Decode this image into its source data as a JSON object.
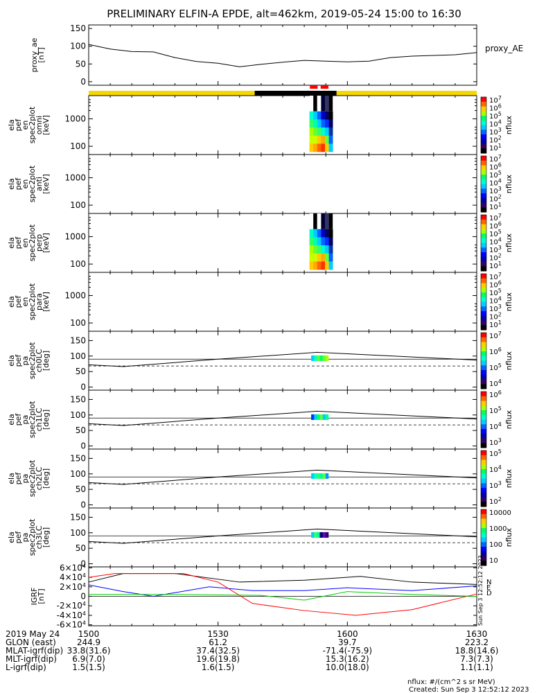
{
  "title": "PRELIMINARY ELFIN-A EPDE, alt=462km, 2019-05-24 15:00 to 16:30",
  "footer": {
    "units": "nflux: #/(cm^2 s sr MeV)",
    "created": "Created: Sun Sep  3 12:52:12 2023",
    "vertical_stamp": "Sun Sep  3 12:52:12 2023"
  },
  "orbit_table": {
    "row_labels": [
      "2019 May 24",
      "GLON (east)",
      "MLAT-igrf(dip)",
      "MLT-igrf(dip)",
      "L-igrf(dip)"
    ],
    "columns": [
      {
        "time": "1500",
        "values": [
          "244.9",
          "33.8(31.6)",
          "6.9(7.0)",
          "1.5(1.5)"
        ]
      },
      {
        "time": "1530",
        "values": [
          "61.2",
          "37.4(32.5)",
          "19.6(19.8)",
          "1.6(1.5)"
        ]
      },
      {
        "time": "1600",
        "values": [
          "39.7",
          "-71.4(-75.9)",
          "15.3(16.2)",
          "10.0(18.0)"
        ]
      },
      {
        "time": "1630",
        "values": [
          "223.2",
          "18.8(14.6)",
          "7.3(7.3)",
          "1.1(1.1)"
        ]
      }
    ]
  },
  "chart_data": [
    {
      "type": "line",
      "panel": "proxy_ae",
      "ylabel": [
        "proxy_ae",
        "[nT]"
      ],
      "legend": "proxy_AE",
      "yticks": [
        "0",
        "50",
        "100",
        "150"
      ],
      "ylim": [
        -10,
        160
      ],
      "x_minutes": [
        0,
        5,
        10,
        15,
        20,
        25,
        30,
        35,
        40,
        45,
        50,
        55,
        60,
        65,
        70,
        75,
        80,
        85,
        90
      ],
      "y": [
        105,
        92,
        85,
        84,
        68,
        57,
        52,
        42,
        49,
        55,
        60,
        58,
        56,
        58,
        68,
        72,
        74,
        76,
        82
      ]
    },
    {
      "type": "bar",
      "panel": "status_bar",
      "segments": [
        {
          "from_min": 0,
          "to_min": 38.5,
          "color": "#f5d800"
        },
        {
          "from_min": 38.5,
          "to_min": 57.5,
          "color": "#000000"
        },
        {
          "from_min": 57.5,
          "to_min": 90,
          "color": "#f5d800"
        }
      ],
      "markers": [
        {
          "from_min": 51.3,
          "to_min": 53.1,
          "color": "#ff0000"
        },
        {
          "from_min": 53.8,
          "to_min": 55.6,
          "color": "#ff0000"
        }
      ]
    },
    {
      "type": "heatmap",
      "panel": "omni",
      "ylabel": [
        "ela",
        "pef",
        "en",
        "spec2plot",
        "omni",
        "[keV]"
      ],
      "yticks": [
        "100",
        "1000"
      ],
      "ylog": true,
      "colorbar": {
        "label": "nflux",
        "ticks": [
          "10^7",
          "10^6",
          "10^5",
          "10^4",
          "10^3",
          "10^2",
          "10^1"
        ]
      },
      "data_x_min": [
        51.2,
        56.6
      ],
      "has_data": true
    },
    {
      "type": "heatmap",
      "panel": "anti",
      "ylabel": [
        "ela",
        "pef",
        "en",
        "spec2plot",
        "anti",
        "[keV]"
      ],
      "yticks": [
        "100",
        "1000"
      ],
      "ylog": true,
      "colorbar": {
        "label": "nflux",
        "ticks": [
          "10^7",
          "10^6",
          "10^5",
          "10^4",
          "10^3",
          "10^2",
          "10^1"
        ]
      },
      "has_data": false
    },
    {
      "type": "heatmap",
      "panel": "perp",
      "ylabel": [
        "ela",
        "pef",
        "en",
        "spec2plot",
        "perp",
        "[keV]"
      ],
      "yticks": [
        "100",
        "1000"
      ],
      "ylog": true,
      "colorbar": {
        "label": "nflux",
        "ticks": [
          "10^7",
          "10^6",
          "10^5",
          "10^4",
          "10^3",
          "10^2",
          "10^1"
        ]
      },
      "data_x_min": [
        51.2,
        56.6
      ],
      "has_data": true
    },
    {
      "type": "heatmap",
      "panel": "para",
      "ylabel": [
        "ela",
        "pef",
        "en",
        "spec2plot",
        "para",
        "[keV]"
      ],
      "yticks": [
        "100",
        "1000"
      ],
      "ylog": true,
      "colorbar": {
        "label": "nflux",
        "ticks": [
          "10^7",
          "10^6",
          "10^5",
          "10^4",
          "10^3",
          "10^2",
          "10^1"
        ]
      },
      "has_data": false
    },
    {
      "type": "heatmap",
      "panel": "ch0LC",
      "ylabel": [
        "ela",
        "pef",
        "pa",
        "spec2plot",
        "ch0LC",
        "[deg]"
      ],
      "yticks": [
        "0",
        "50",
        "100",
        "150"
      ],
      "colorbar": {
        "label": "nflux",
        "ticks": [
          "10^7",
          "10^6",
          "10^5",
          "10^4"
        ]
      },
      "solid_curve": [
        {
          "x": 0,
          "y": 72
        },
        {
          "x": 8,
          "y": 66
        },
        {
          "x": 30,
          "y": 90
        },
        {
          "x": 53,
          "y": 112
        },
        {
          "x": 90,
          "y": 87
        }
      ],
      "dashed_level": 68,
      "horizontal_ref": 90
    },
    {
      "type": "heatmap",
      "panel": "ch1LC",
      "ylabel": [
        "ela",
        "pef",
        "pa",
        "spec2plot",
        "ch1LC",
        "[deg]"
      ],
      "yticks": [
        "0",
        "50",
        "100",
        "150"
      ],
      "colorbar": {
        "label": "nflux",
        "ticks": [
          "10^6",
          "10^5",
          "10^4",
          "10^3"
        ]
      },
      "solid_curve": [
        {
          "x": 0,
          "y": 72
        },
        {
          "x": 8,
          "y": 66
        },
        {
          "x": 30,
          "y": 90
        },
        {
          "x": 53,
          "y": 112
        },
        {
          "x": 90,
          "y": 87
        }
      ],
      "dashed_level": 68,
      "horizontal_ref": 90
    },
    {
      "type": "heatmap",
      "panel": "ch2LC",
      "ylabel": [
        "ela",
        "pef",
        "pa",
        "spec2plot",
        "ch2LC",
        "[deg]"
      ],
      "yticks": [
        "0",
        "50",
        "100",
        "150"
      ],
      "colorbar": {
        "label": "nflux",
        "ticks": [
          "10^5",
          "10^4",
          "10^3",
          "10^2"
        ]
      },
      "solid_curve": [
        {
          "x": 0,
          "y": 72
        },
        {
          "x": 8,
          "y": 66
        },
        {
          "x": 30,
          "y": 90
        },
        {
          "x": 53,
          "y": 112
        },
        {
          "x": 90,
          "y": 87
        }
      ],
      "dashed_level": 68,
      "horizontal_ref": 90
    },
    {
      "type": "heatmap",
      "panel": "ch3LC",
      "ylabel": [
        "ela",
        "pef",
        "pa",
        "spec2plot",
        "ch3LC",
        "[deg]"
      ],
      "yticks": [
        "0",
        "50",
        "100",
        "150"
      ],
      "colorbar": {
        "label": "nflux",
        "ticks": [
          "10000",
          "1000",
          "100",
          "10"
        ]
      },
      "solid_curve": [
        {
          "x": 0,
          "y": 72
        },
        {
          "x": 8,
          "y": 66
        },
        {
          "x": 30,
          "y": 90
        },
        {
          "x": 53,
          "y": 112
        },
        {
          "x": 90,
          "y": 87
        }
      ],
      "dashed_level": 68,
      "horizontal_ref": 90
    },
    {
      "type": "line",
      "panel": "igrf",
      "ylabel": [
        "IGRF",
        "[nT]"
      ],
      "yticks": [
        "-6x10^4",
        "-4x10^4",
        "-2x10^4",
        "0",
        "2x10^4",
        "4x10^4",
        "6x10^4"
      ],
      "ylim": [
        -62000,
        62000
      ],
      "legend": [
        "N",
        "E",
        "D"
      ],
      "series": [
        {
          "name": "N",
          "color": "#000000",
          "x": [
            0,
            8,
            20,
            35,
            50,
            63,
            75,
            90
          ],
          "y": [
            30000,
            48000,
            48000,
            30000,
            34000,
            42000,
            30000,
            25000
          ]
        },
        {
          "name": "E",
          "color": "#0000ff",
          "x": [
            0,
            8,
            15,
            28,
            38,
            50,
            60,
            75,
            90
          ],
          "y": [
            24000,
            10000,
            0,
            20000,
            12000,
            12000,
            18000,
            12000,
            22000
          ]
        },
        {
          "name": "D",
          "color": "#ff0000",
          "x": [
            0,
            6,
            22,
            30,
            38,
            50,
            62,
            75,
            90
          ],
          "y": [
            40000,
            48000,
            48000,
            30000,
            -15000,
            -30000,
            -40000,
            -28000,
            5000
          ]
        },
        {
          "name": "",
          "color": "#00cc00",
          "x": [
            0,
            20,
            40,
            50,
            60,
            75,
            90
          ],
          "y": [
            4000,
            4000,
            2000,
            -8000,
            10000,
            4000,
            0
          ]
        }
      ]
    }
  ]
}
